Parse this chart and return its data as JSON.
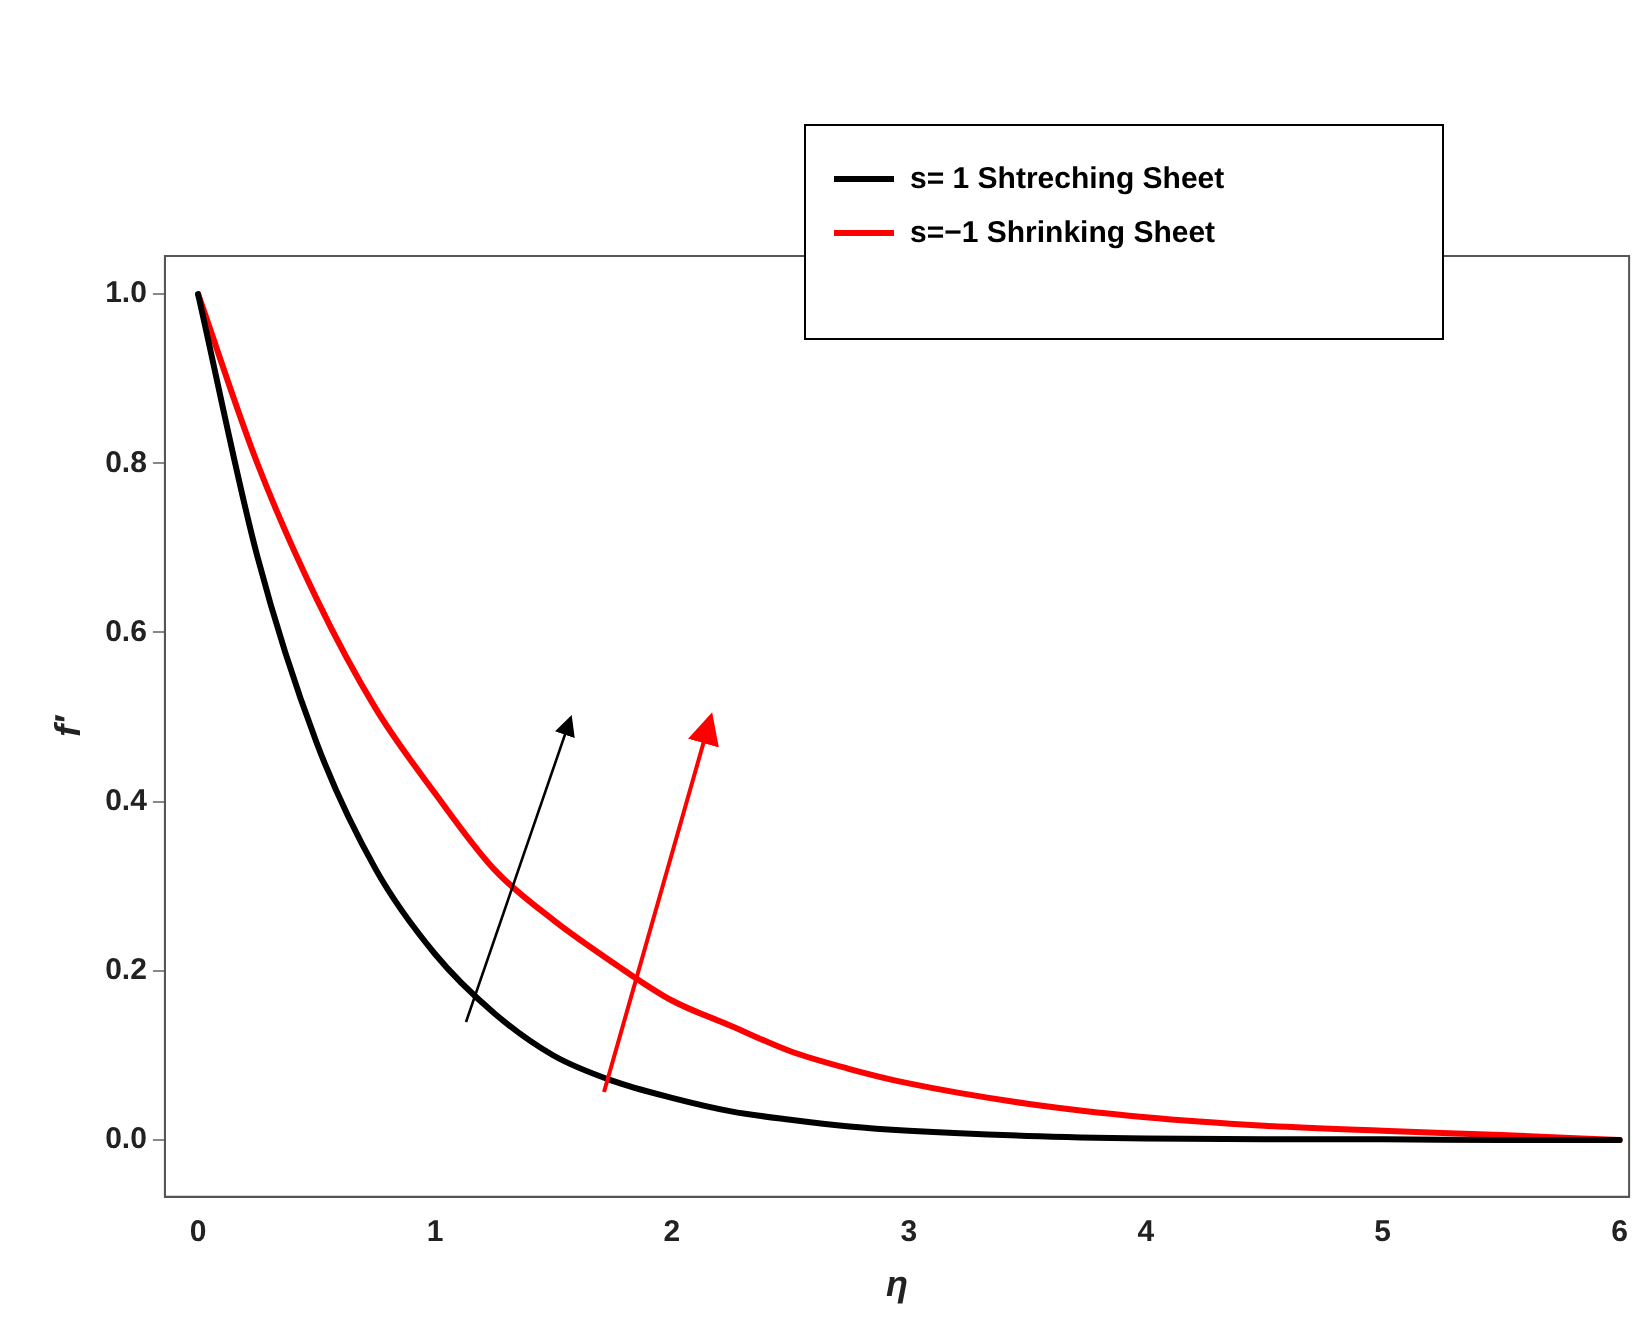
{
  "chart_data": {
    "type": "line",
    "xlabel": "η",
    "ylabel": "f′",
    "xlim": [
      -0.14,
      6.04
    ],
    "ylim": [
      -0.067,
      1.045
    ],
    "xticks": [
      0,
      1,
      2,
      3,
      4,
      5,
      6
    ],
    "yticks": [
      {
        "value": 0,
        "label": "0.0"
      },
      {
        "value": 0.2,
        "label": "0.2"
      },
      {
        "value": 0.4,
        "label": "0.4"
      },
      {
        "value": 0.6,
        "label": "0.6"
      },
      {
        "value": 0.8,
        "label": "0.8"
      },
      {
        "value": 1,
        "label": "1.0"
      }
    ],
    "grid": false,
    "legend": "top right",
    "marker": "none",
    "line_style": "solid",
    "x": [
      0,
      0.25,
      0.5,
      0.75,
      1,
      1.25,
      1.5,
      1.75,
      2,
      2.25,
      2.5,
      2.75,
      3,
      3.5,
      4,
      4.5,
      5,
      5.5,
      6
    ],
    "series": [
      {
        "name": "s= 1 Shtreching Sheet",
        "color": "#000000",
        "values": [
          1,
          0.69,
          0.47,
          0.32,
          0.22,
          0.15,
          0.1,
          0.07,
          0.05,
          0.034,
          0.024,
          0.016,
          0.011,
          0.005,
          0.002,
          0.001,
          0.001,
          0,
          0
        ]
      },
      {
        "name": "s=−1 Shrinking Sheet",
        "color": "#ff0000",
        "values": [
          1,
          0.8,
          0.64,
          0.51,
          0.41,
          0.32,
          0.26,
          0.21,
          0.165,
          0.135,
          0.105,
          0.084,
          0.067,
          0.043,
          0.027,
          0.017,
          0.011,
          0.006,
          0
        ]
      }
    ]
  }
}
